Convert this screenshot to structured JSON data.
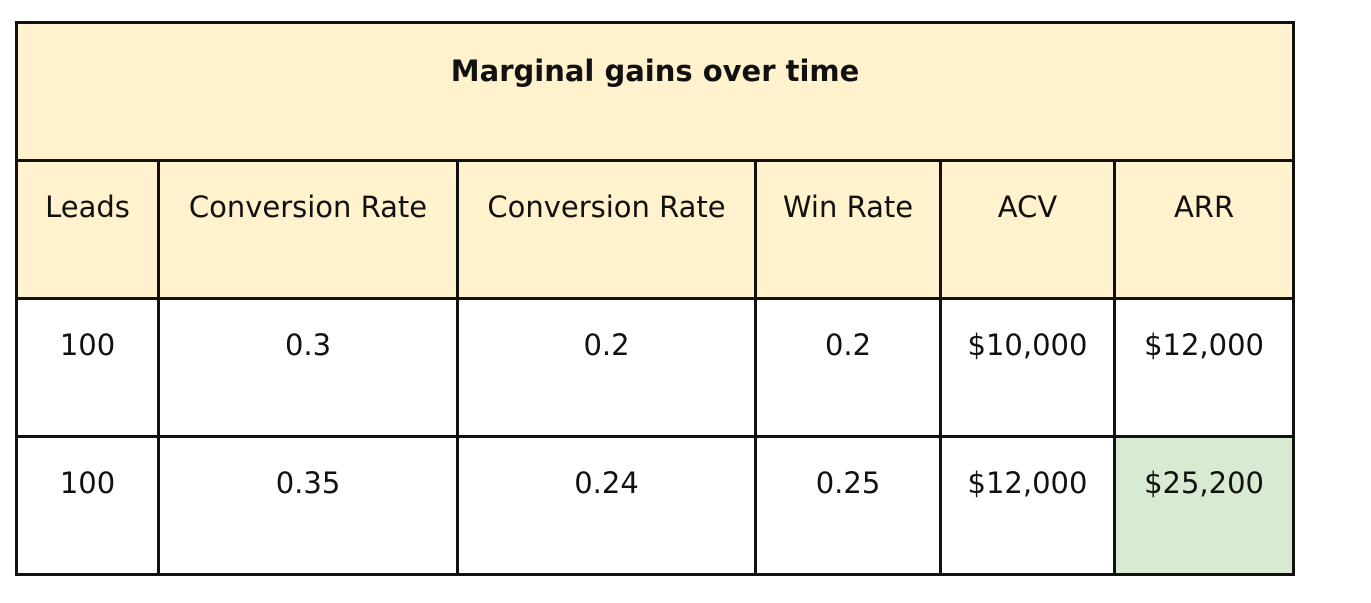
{
  "table": {
    "title": "Marginal gains over time",
    "headers": [
      "Leads",
      "Conversion Rate",
      "Conversion Rate",
      "Win Rate",
      "ACV",
      "ARR"
    ],
    "rows": [
      [
        "100",
        "0.3",
        "0.2",
        "0.2",
        "$10,000",
        "$12,000"
      ],
      [
        "100",
        "0.35",
        "0.24",
        "0.25",
        "$12,000",
        "$25,200"
      ]
    ],
    "highlight_cell": {
      "row": 1,
      "col": 5
    },
    "colors": {
      "header_bg": "#fff2cc",
      "highlight_bg": "#d9ead3",
      "border": "#111111"
    }
  }
}
